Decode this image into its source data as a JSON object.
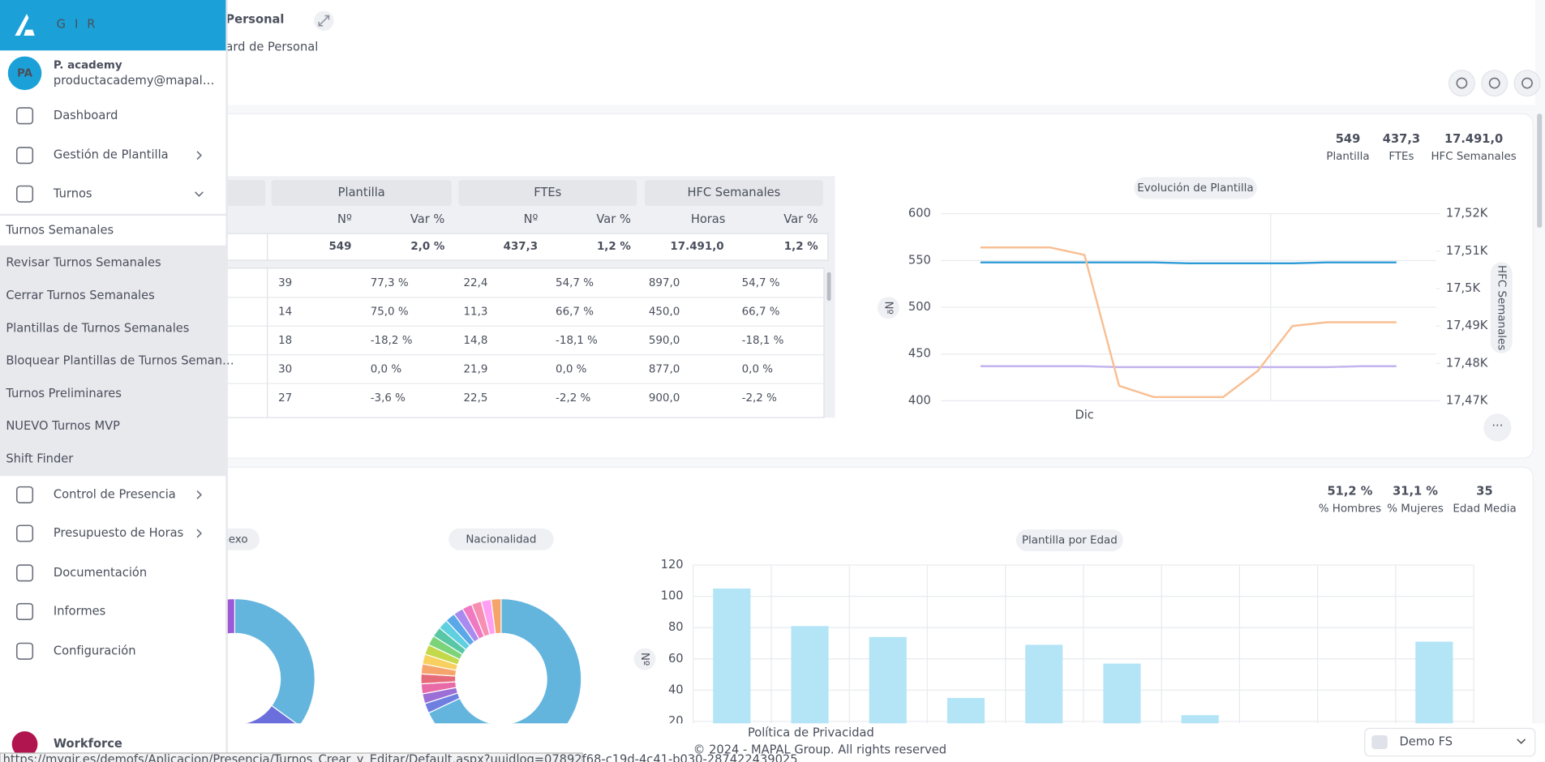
{
  "header": {
    "title": "Personal",
    "subtitle": "ard de Personal"
  },
  "sidebar": {
    "brand": "GIR",
    "avatar": "PA",
    "user_name": "P. academy",
    "user_email": "productacademy@mapal…",
    "menu": [
      "Dashboard",
      "Gestión de Plantilla",
      "Turnos"
    ],
    "submenu": [
      "Turnos Semanales",
      "Revisar Turnos Semanales",
      "Cerrar Turnos Semanales",
      "Plantillas de Turnos Semanales",
      "Bloquear Plantillas de Turnos Seman…",
      "Turnos Preliminares",
      "NUEVO Turnos MVP",
      "Shift Finder"
    ],
    "menu_after": [
      "Control de Presencia",
      "Presupuesto de Horas",
      "Documentación",
      "Informes",
      "Configuración"
    ],
    "footer_item": "Workforce"
  },
  "kpis_top": [
    {
      "value": "549",
      "label": "Plantilla"
    },
    {
      "value": "437,3",
      "label": "FTEs"
    },
    {
      "value": "17.491,0",
      "label": "HFC Semanales"
    }
  ],
  "kpis_bottom": [
    {
      "value": "51,2 %",
      "label": "% Hombres"
    },
    {
      "value": "31,1 %",
      "label": "% Mujeres"
    },
    {
      "value": "35",
      "label": "Edad Media"
    }
  ],
  "table": {
    "groups": [
      "Plantilla",
      "FTEs",
      "HFC Semanales"
    ],
    "subheaders": [
      "Nº",
      "Var %",
      "Nº",
      "Var %",
      "Horas",
      "Var %"
    ],
    "total": [
      "549",
      "2,0 %",
      "437,3",
      "1,2 %",
      "17.491,0",
      "1,2 %"
    ],
    "rows": [
      [
        "39",
        "77,3 %",
        "22,4",
        "54,7 %",
        "897,0",
        "54,7 %"
      ],
      [
        "14",
        "75,0 %",
        "11,3",
        "66,7 %",
        "450,0",
        "66,7 %"
      ],
      [
        "18",
        "-18,2 %",
        "14,8",
        "-18,1 %",
        "590,0",
        "-18,1 %"
      ],
      [
        "30",
        "0,0 %",
        "21,9",
        "0,0 %",
        "877,0",
        "0,0 %"
      ],
      [
        "27",
        "-3,6 %",
        "22,5",
        "-2,2 %",
        "900,0",
        "-2,2 %"
      ]
    ]
  },
  "chart_data": [
    {
      "type": "line",
      "title": "Evolución de Plantilla",
      "ylabel": "Nº",
      "y2label": "HFC Semanales",
      "categories": [
        null,
        null,
        null,
        "Dic",
        null,
        null,
        null,
        null,
        null,
        null,
        null,
        null,
        null
      ],
      "ylim": [
        400,
        600
      ],
      "yticks": [
        400,
        450,
        500,
        550,
        600
      ],
      "y2lim": [
        17470,
        17520
      ],
      "y2ticks": [
        {
          "value": 17470,
          "label": "17,47K"
        },
        {
          "value": 17480,
          "label": "17,48K"
        },
        {
          "value": 17490,
          "label": "17,49K"
        },
        {
          "value": 17500,
          "label": "17,5K"
        },
        {
          "value": 17510,
          "label": "17,51K"
        },
        {
          "value": 17520,
          "label": "17,52K"
        }
      ],
      "grid": true,
      "series": [
        {
          "color": "#2d9ad6",
          "values": [
            548,
            548,
            548,
            548,
            548,
            548,
            547,
            547,
            547,
            547,
            548,
            548,
            548
          ]
        },
        {
          "color": "#c3b3ee",
          "values": [
            437,
            437,
            437,
            437,
            436,
            436,
            436,
            436,
            436,
            436,
            436,
            437,
            437
          ]
        },
        {
          "color": "#f8bf93",
          "axis": "y2",
          "values": [
            17511,
            17511,
            17511,
            17509,
            17474,
            17471,
            17471,
            17471,
            17478,
            17490,
            17491,
            17491,
            17491
          ]
        }
      ]
    },
    {
      "type": "pie",
      "title": "Sexo",
      "values": [
        35,
        45,
        20
      ],
      "colors": [
        "#64b5de",
        "#6b6fdc",
        "#9b59d6"
      ]
    },
    {
      "type": "pie",
      "title": "Nacionalidad",
      "values": [
        68,
        2,
        2,
        2,
        2,
        2,
        2,
        2,
        2,
        2,
        2,
        2,
        2,
        2,
        2,
        2,
        2
      ],
      "colors": [
        "#64b5de",
        "#6f7fe0",
        "#9b6fd6",
        "#e86aa6",
        "#e56b7b",
        "#f5a46b",
        "#f7d060",
        "#c4d94a",
        "#7bd47a",
        "#58c7a5",
        "#5fd0e0",
        "#5aa8e8",
        "#a98bf0",
        "#f07ac2",
        "#f78fb3",
        "#ff9ff3",
        "#f5a46b"
      ]
    },
    {
      "type": "bar",
      "title": "Plantilla por Edad",
      "ylabel": "Nº",
      "categories": [
        null,
        null,
        null,
        null,
        null,
        null,
        null,
        null,
        null,
        null
      ],
      "values": [
        105,
        81,
        74,
        35,
        69,
        57,
        24,
        null,
        null,
        71
      ],
      "color": "#b3e5f7",
      "ylim": [
        0,
        120
      ],
      "yticks": [
        20,
        40,
        60,
        80,
        100,
        120
      ],
      "grid": true
    }
  ],
  "footer": {
    "privacy": "Política de Privacidad",
    "copyright": "© 2024 - MAPAL Group. All rights reserved",
    "environment": "Demo FS"
  },
  "status_url": "https://mygir.es/demofs/Aplicacion/Presencia/Turnos_Crear_y_Editar/Default.aspx?uuidlog=07892f68-c19d-4c41-b030-287422439025"
}
